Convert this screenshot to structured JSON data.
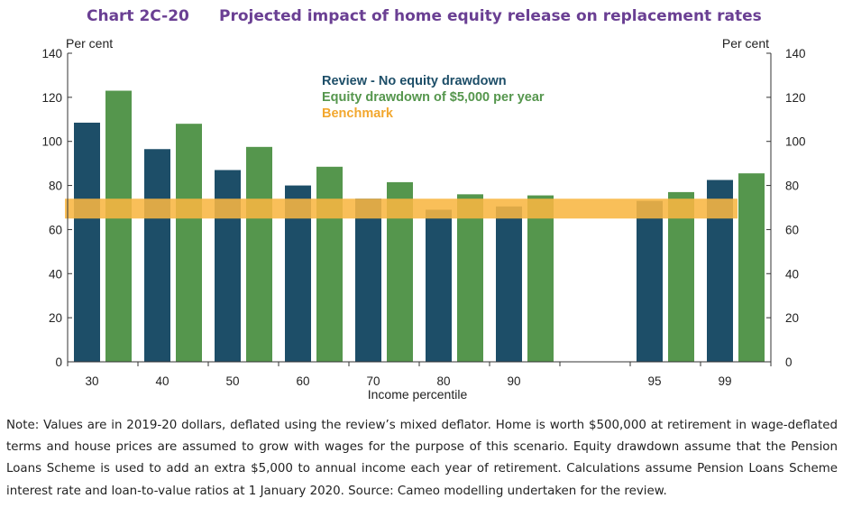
{
  "chart_number": "Chart 2C-20",
  "title": "Projected impact of home equity release on replacement rates",
  "note": "Note: Values are in 2019-20 dollars, deflated using the review’s mixed deflator. Home is worth $500,000 at retirement in wage-deflated terms and house prices are assumed to grow with wages for the purpose of this scenario. Equity drawdown assume that the Pension Loans Scheme is used to add an extra $5,000 to annual income each year of retirement. Calculations assume Pension Loans Scheme interest rate and loan-to-value ratios at 1 January 2020. Source: Cameo modelling undertaken for the review.",
  "colors": {
    "review": "#1d4e68",
    "drawdown": "#55964d",
    "benchmark": "#f8b642",
    "title": "#6a3f93"
  },
  "chart_data": {
    "type": "bar",
    "title": "Projected impact of home equity release on replacement rates",
    "xlabel": "Income percentile",
    "ylabel_left": "Per cent",
    "ylabel_right": "Per cent",
    "ylim": [
      0,
      140
    ],
    "yticks": [
      0,
      20,
      40,
      60,
      80,
      100,
      120,
      140
    ],
    "categories": [
      "30",
      "40",
      "50",
      "60",
      "70",
      "80",
      "90",
      "",
      "95",
      "99"
    ],
    "series": [
      {
        "name": "Review - No equity drawdown",
        "color": "#1d4e68",
        "values": [
          108.5,
          96.5,
          87,
          80,
          74,
          69,
          70.5,
          null,
          73,
          82.5
        ]
      },
      {
        "name": "Equity drawdown of $5,000  per year",
        "color": "#55964d",
        "values": [
          123,
          108,
          97.5,
          88.5,
          81.5,
          76,
          75.5,
          null,
          77,
          85.5
        ]
      }
    ],
    "benchmark": {
      "name": "Benchmark",
      "range": [
        65,
        74
      ]
    },
    "legend_position": "top-center"
  }
}
